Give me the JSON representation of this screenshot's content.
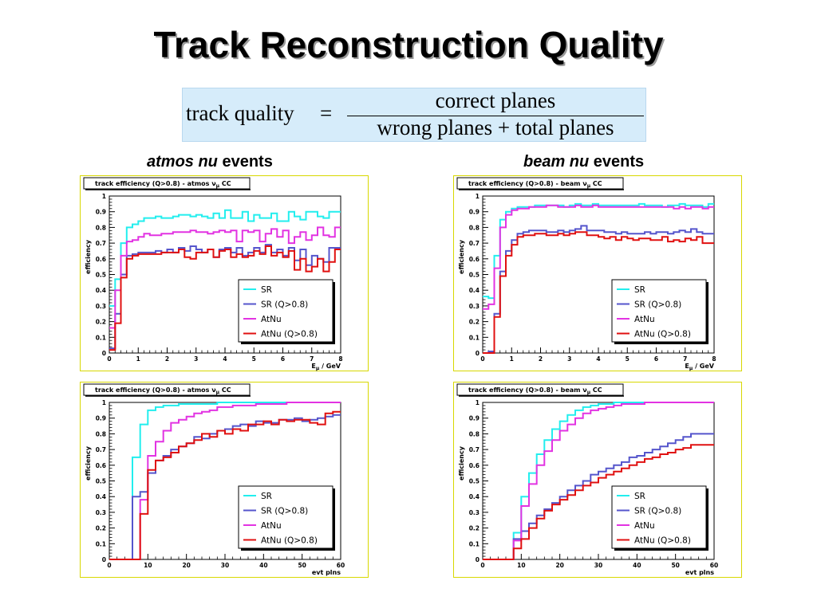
{
  "title": "Track Reconstruction Quality",
  "formula": {
    "lhs": "track quality",
    "eq": "=",
    "numerator": "correct planes",
    "denominator": "wrong planes + total planes"
  },
  "columns": [
    {
      "emph": "atmos nu",
      "rest": " events"
    },
    {
      "emph": "beam nu",
      "rest": " events"
    }
  ],
  "colors": {
    "SR": "#22eeee",
    "SR (Q>0.8)": "#5555cc",
    "AtNu": "#e233e2",
    "AtNu (Q>0.8)": "#e01010",
    "panel_border": "#d8d800"
  },
  "chart_data": [
    {
      "type": "line",
      "step": true,
      "title": "track efficiency (Q>0.8) - atmos ν",
      "title_sub": "μ",
      "title_end": "CC",
      "xlabel": "E",
      "xlabel_sub": "μ",
      "xlabel_end": "/ GeV",
      "ylabel": "efficiency",
      "xlim": [
        0,
        8
      ],
      "ylim": [
        0,
        1
      ],
      "xticks": [
        "0",
        "1",
        "2",
        "3",
        "4",
        "5",
        "6",
        "7",
        "8"
      ],
      "yticks": [
        "0",
        "0.1",
        "0.2",
        "0.3",
        "0.4",
        "0.5",
        "0.6",
        "0.7",
        "0.8",
        "0.9",
        "1"
      ],
      "bin_edges": [
        0,
        0.2,
        0.4,
        0.6,
        0.8,
        1,
        1.2,
        1.4,
        1.6,
        1.8,
        2,
        2.2,
        2.4,
        2.6,
        2.8,
        3,
        3.2,
        3.4,
        3.6,
        3.8,
        4,
        4.2,
        4.4,
        4.6,
        4.8,
        5,
        5.2,
        5.4,
        5.6,
        5.8,
        6,
        6.2,
        6.4,
        6.6,
        6.8,
        7,
        7.2,
        7.4,
        7.6,
        7.8,
        8
      ],
      "series": [
        {
          "name": "SR",
          "values": [
            0.3,
            0.47,
            0.7,
            0.8,
            0.82,
            0.84,
            0.86,
            0.86,
            0.87,
            0.86,
            0.86,
            0.87,
            0.88,
            0.88,
            0.87,
            0.88,
            0.87,
            0.86,
            0.89,
            0.86,
            0.91,
            0.86,
            0.86,
            0.9,
            0.84,
            0.88,
            0.86,
            0.86,
            0.89,
            0.84,
            0.84,
            0.9,
            0.87,
            0.85,
            0.9,
            0.9,
            0.87,
            0.86,
            0.9,
            0.9
          ]
        },
        {
          "name": "SR (Q>0.8)",
          "values": [
            0.03,
            0.25,
            0.5,
            0.62,
            0.63,
            0.64,
            0.64,
            0.64,
            0.65,
            0.64,
            0.66,
            0.64,
            0.67,
            0.65,
            0.68,
            0.66,
            0.64,
            0.66,
            0.61,
            0.66,
            0.67,
            0.64,
            0.67,
            0.62,
            0.64,
            0.67,
            0.64,
            0.69,
            0.64,
            0.66,
            0.62,
            0.67,
            0.59,
            0.66,
            0.56,
            0.62,
            0.6,
            0.58,
            0.67,
            0.67
          ]
        },
        {
          "name": "AtNu",
          "values": [
            0.16,
            0.4,
            0.62,
            0.71,
            0.72,
            0.74,
            0.76,
            0.75,
            0.75,
            0.76,
            0.76,
            0.77,
            0.77,
            0.77,
            0.78,
            0.77,
            0.77,
            0.76,
            0.77,
            0.78,
            0.77,
            0.78,
            0.71,
            0.78,
            0.77,
            0.78,
            0.71,
            0.76,
            0.79,
            0.74,
            0.78,
            0.7,
            0.74,
            0.77,
            0.72,
            0.75,
            0.8,
            0.75,
            0.74,
            0.8
          ]
        },
        {
          "name": "AtNu (Q>0.8)",
          "values": [
            0.02,
            0.19,
            0.48,
            0.6,
            0.62,
            0.63,
            0.63,
            0.63,
            0.63,
            0.64,
            0.64,
            0.64,
            0.66,
            0.61,
            0.6,
            0.64,
            0.64,
            0.66,
            0.61,
            0.65,
            0.66,
            0.61,
            0.63,
            0.61,
            0.62,
            0.65,
            0.63,
            0.68,
            0.62,
            0.64,
            0.61,
            0.65,
            0.53,
            0.6,
            0.52,
            0.55,
            0.6,
            0.52,
            0.58,
            0.66
          ]
        }
      ],
      "legend": [
        "SR",
        "SR (Q>0.8)",
        "AtNu",
        "AtNu (Q>0.8)"
      ],
      "legend_position": "bottom-right"
    },
    {
      "type": "line",
      "step": true,
      "title": "track efficiency (Q>0.8) - beam ν",
      "title_sub": "μ",
      "title_end": "CC",
      "xlabel": "E",
      "xlabel_sub": "μ",
      "xlabel_end": "/ GeV",
      "ylabel": "efficiency",
      "xlim": [
        0,
        8
      ],
      "ylim": [
        0,
        1
      ],
      "xticks": [
        "0",
        "1",
        "2",
        "3",
        "4",
        "5",
        "6",
        "7",
        "8"
      ],
      "yticks": [
        "0",
        "0.1",
        "0.2",
        "0.3",
        "0.4",
        "0.5",
        "0.6",
        "0.7",
        "0.8",
        "0.9",
        "1"
      ],
      "bin_edges": [
        0,
        0.2,
        0.4,
        0.6,
        0.8,
        1,
        1.2,
        1.4,
        1.6,
        1.8,
        2,
        2.2,
        2.4,
        2.6,
        2.8,
        3,
        3.2,
        3.4,
        3.6,
        3.8,
        4,
        4.2,
        4.4,
        4.6,
        4.8,
        5,
        5.2,
        5.4,
        5.6,
        5.8,
        6,
        6.2,
        6.4,
        6.6,
        6.8,
        7,
        7.2,
        7.4,
        7.6,
        7.8,
        8
      ],
      "series": [
        {
          "name": "SR",
          "values": [
            0.36,
            0.35,
            0.62,
            0.85,
            0.9,
            0.92,
            0.93,
            0.93,
            0.93,
            0.94,
            0.94,
            0.94,
            0.94,
            0.94,
            0.93,
            0.94,
            0.95,
            0.94,
            0.94,
            0.95,
            0.94,
            0.94,
            0.94,
            0.94,
            0.94,
            0.94,
            0.94,
            0.95,
            0.94,
            0.94,
            0.94,
            0.93,
            0.94,
            0.94,
            0.95,
            0.94,
            0.94,
            0.94,
            0.93,
            0.95
          ]
        },
        {
          "name": "SR (Q>0.8)",
          "values": [
            0,
            0.01,
            0.25,
            0.52,
            0.65,
            0.72,
            0.76,
            0.77,
            0.78,
            0.78,
            0.78,
            0.77,
            0.77,
            0.78,
            0.77,
            0.78,
            0.79,
            0.81,
            0.78,
            0.78,
            0.78,
            0.77,
            0.77,
            0.76,
            0.77,
            0.76,
            0.76,
            0.76,
            0.77,
            0.76,
            0.77,
            0.77,
            0.76,
            0.77,
            0.78,
            0.77,
            0.79,
            0.77,
            0.76,
            0.76
          ]
        },
        {
          "name": "AtNu",
          "values": [
            0.28,
            0.31,
            0.54,
            0.8,
            0.88,
            0.91,
            0.92,
            0.92,
            0.93,
            0.93,
            0.93,
            0.94,
            0.94,
            0.93,
            0.93,
            0.93,
            0.94,
            0.93,
            0.93,
            0.94,
            0.93,
            0.93,
            0.93,
            0.93,
            0.93,
            0.93,
            0.93,
            0.93,
            0.93,
            0.93,
            0.93,
            0.93,
            0.93,
            0.92,
            0.93,
            0.92,
            0.93,
            0.93,
            0.92,
            0.93
          ]
        },
        {
          "name": "AtNu (Q>0.8)",
          "values": [
            0,
            0,
            0.23,
            0.49,
            0.62,
            0.69,
            0.74,
            0.75,
            0.75,
            0.76,
            0.76,
            0.75,
            0.75,
            0.76,
            0.75,
            0.76,
            0.77,
            0.77,
            0.75,
            0.75,
            0.74,
            0.73,
            0.74,
            0.72,
            0.74,
            0.73,
            0.72,
            0.73,
            0.73,
            0.72,
            0.72,
            0.74,
            0.71,
            0.72,
            0.71,
            0.73,
            0.72,
            0.74,
            0.7,
            0.7
          ]
        }
      ],
      "legend": [
        "SR",
        "SR (Q>0.8)",
        "AtNu",
        "AtNu (Q>0.8)"
      ],
      "legend_position": "bottom-right"
    },
    {
      "type": "line",
      "step": true,
      "title": "track efficiency (Q>0.8) - atmos ν",
      "title_sub": "μ",
      "title_end": "CC",
      "xlabel": "evt plns",
      "xlabel_sub": "",
      "xlabel_end": "",
      "ylabel": "efficiency",
      "xlim": [
        0,
        60
      ],
      "ylim": [
        0,
        1
      ],
      "xticks": [
        "0",
        "10",
        "20",
        "30",
        "40",
        "50",
        "60"
      ],
      "yticks": [
        "0",
        "0.1",
        "0.2",
        "0.3",
        "0.4",
        "0.5",
        "0.6",
        "0.7",
        "0.8",
        "0.9",
        "1"
      ],
      "bin_edges": [
        0,
        2,
        4,
        6,
        8,
        10,
        12,
        14,
        16,
        18,
        20,
        22,
        24,
        26,
        28,
        30,
        32,
        34,
        36,
        38,
        40,
        42,
        44,
        46,
        48,
        50,
        52,
        54,
        56,
        58,
        60
      ],
      "series": [
        {
          "name": "SR",
          "values": [
            0,
            0,
            0,
            0.65,
            0.86,
            0.95,
            0.97,
            0.98,
            0.98,
            0.99,
            0.99,
            0.99,
            0.99,
            0.99,
            1,
            1,
            1,
            1,
            1,
            1,
            1,
            1,
            1,
            1,
            1,
            1,
            1,
            1,
            1,
            1
          ]
        },
        {
          "name": "SR (Q>0.8)",
          "values": [
            0,
            0,
            0,
            0.4,
            0.43,
            0.55,
            0.63,
            0.66,
            0.7,
            0.72,
            0.74,
            0.78,
            0.77,
            0.8,
            0.82,
            0.83,
            0.85,
            0.86,
            0.85,
            0.88,
            0.87,
            0.87,
            0.89,
            0.89,
            0.9,
            0.88,
            0.89,
            0.9,
            0.91,
            0.92
          ]
        },
        {
          "name": "AtNu",
          "values": [
            0,
            0,
            0,
            0,
            0.38,
            0.66,
            0.75,
            0.82,
            0.87,
            0.89,
            0.91,
            0.93,
            0.94,
            0.95,
            0.97,
            0.97,
            0.98,
            0.98,
            0.98,
            0.99,
            0.99,
            0.99,
            0.99,
            1,
            1,
            1,
            1,
            1,
            1,
            1
          ]
        },
        {
          "name": "AtNu (Q>0.8)",
          "values": [
            0,
            0,
            0,
            0,
            0.29,
            0.57,
            0.63,
            0.65,
            0.68,
            0.72,
            0.74,
            0.76,
            0.8,
            0.78,
            0.82,
            0.8,
            0.83,
            0.82,
            0.86,
            0.86,
            0.88,
            0.86,
            0.89,
            0.88,
            0.89,
            0.89,
            0.87,
            0.86,
            0.93,
            0.94
          ]
        }
      ],
      "legend": [
        "SR",
        "SR (Q>0.8)",
        "AtNu",
        "AtNu (Q>0.8)"
      ],
      "legend_position": "bottom-right"
    },
    {
      "type": "line",
      "step": true,
      "title": "track efficiency (Q>0.8) - beam ν",
      "title_sub": "μ",
      "title_end": "CC",
      "xlabel": "evt plns",
      "xlabel_sub": "",
      "xlabel_end": "",
      "ylabel": "efficiency",
      "xlim": [
        0,
        60
      ],
      "ylim": [
        0,
        1
      ],
      "xticks": [
        "0",
        "10",
        "20",
        "30",
        "40",
        "50",
        "60"
      ],
      "yticks": [
        "0",
        "0.1",
        "0.2",
        "0.3",
        "0.4",
        "0.5",
        "0.6",
        "0.7",
        "0.8",
        "0.9",
        "1"
      ],
      "bin_edges": [
        0,
        2,
        4,
        6,
        8,
        10,
        12,
        14,
        16,
        18,
        20,
        22,
        24,
        26,
        28,
        30,
        32,
        34,
        36,
        38,
        40,
        42,
        44,
        46,
        48,
        50,
        52,
        54,
        56,
        58,
        60
      ],
      "series": [
        {
          "name": "SR",
          "values": [
            0,
            0,
            0,
            0,
            0.17,
            0.4,
            0.55,
            0.67,
            0.76,
            0.83,
            0.88,
            0.92,
            0.95,
            0.97,
            0.98,
            0.99,
            0.99,
            1,
            1,
            1,
            1,
            1,
            1,
            1,
            1,
            1,
            1,
            1,
            1,
            1
          ]
        },
        {
          "name": "SR (Q>0.8)",
          "values": [
            0,
            0,
            0,
            0,
            0.13,
            0.18,
            0.23,
            0.28,
            0.32,
            0.36,
            0.4,
            0.44,
            0.47,
            0.5,
            0.54,
            0.56,
            0.58,
            0.6,
            0.62,
            0.65,
            0.66,
            0.68,
            0.7,
            0.72,
            0.74,
            0.76,
            0.78,
            0.8,
            0.8,
            0.8
          ]
        },
        {
          "name": "AtNu",
          "values": [
            0,
            0,
            0,
            0,
            0.12,
            0.34,
            0.48,
            0.6,
            0.69,
            0.76,
            0.82,
            0.86,
            0.9,
            0.93,
            0.95,
            0.96,
            0.97,
            0.98,
            0.99,
            0.99,
            0.99,
            1,
            1,
            1,
            1,
            1,
            1,
            1,
            1,
            1
          ]
        },
        {
          "name": "AtNu (Q>0.8)",
          "values": [
            0,
            0,
            0,
            0,
            0.07,
            0.13,
            0.2,
            0.26,
            0.31,
            0.35,
            0.38,
            0.41,
            0.44,
            0.47,
            0.49,
            0.52,
            0.54,
            0.56,
            0.58,
            0.6,
            0.62,
            0.64,
            0.65,
            0.67,
            0.68,
            0.7,
            0.71,
            0.73,
            0.73,
            0.73
          ]
        }
      ],
      "legend": [
        "SR",
        "SR (Q>0.8)",
        "AtNu",
        "AtNu (Q>0.8)"
      ],
      "legend_position": "bottom-right"
    }
  ]
}
